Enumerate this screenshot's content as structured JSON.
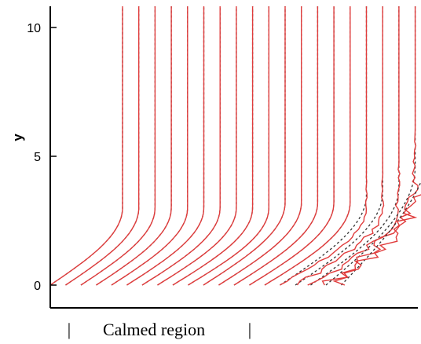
{
  "chart_data": {
    "type": "line",
    "title": "",
    "xlabel": "",
    "ylabel": "y",
    "ylim": [
      -0.8,
      10.8
    ],
    "y_ticks": [
      0,
      5,
      10
    ],
    "y_tick_labels": [
      "0",
      "5",
      "10"
    ],
    "grid": false,
    "legend": "none",
    "profile_count": 20,
    "profile_origins_x": [
      0,
      1,
      2,
      3,
      4,
      5,
      6,
      7,
      8,
      9,
      10,
      11,
      12,
      13,
      14,
      15,
      16,
      17,
      18,
      19
    ],
    "profile_heights": [
      3,
      3,
      3,
      3,
      3,
      3,
      3,
      3,
      3,
      3,
      3.2,
      3.2,
      3.2,
      3.2,
      3.2,
      3.5,
      3.6,
      3.8,
      4.6,
      5.8
    ],
    "series": [
      {
        "style": "solid",
        "color": "#e03c3c"
      },
      {
        "style": "dashed",
        "color": "#333333"
      }
    ],
    "annotations": [
      "Calmed region"
    ],
    "annotation_markers": [
      "|",
      "|"
    ]
  }
}
